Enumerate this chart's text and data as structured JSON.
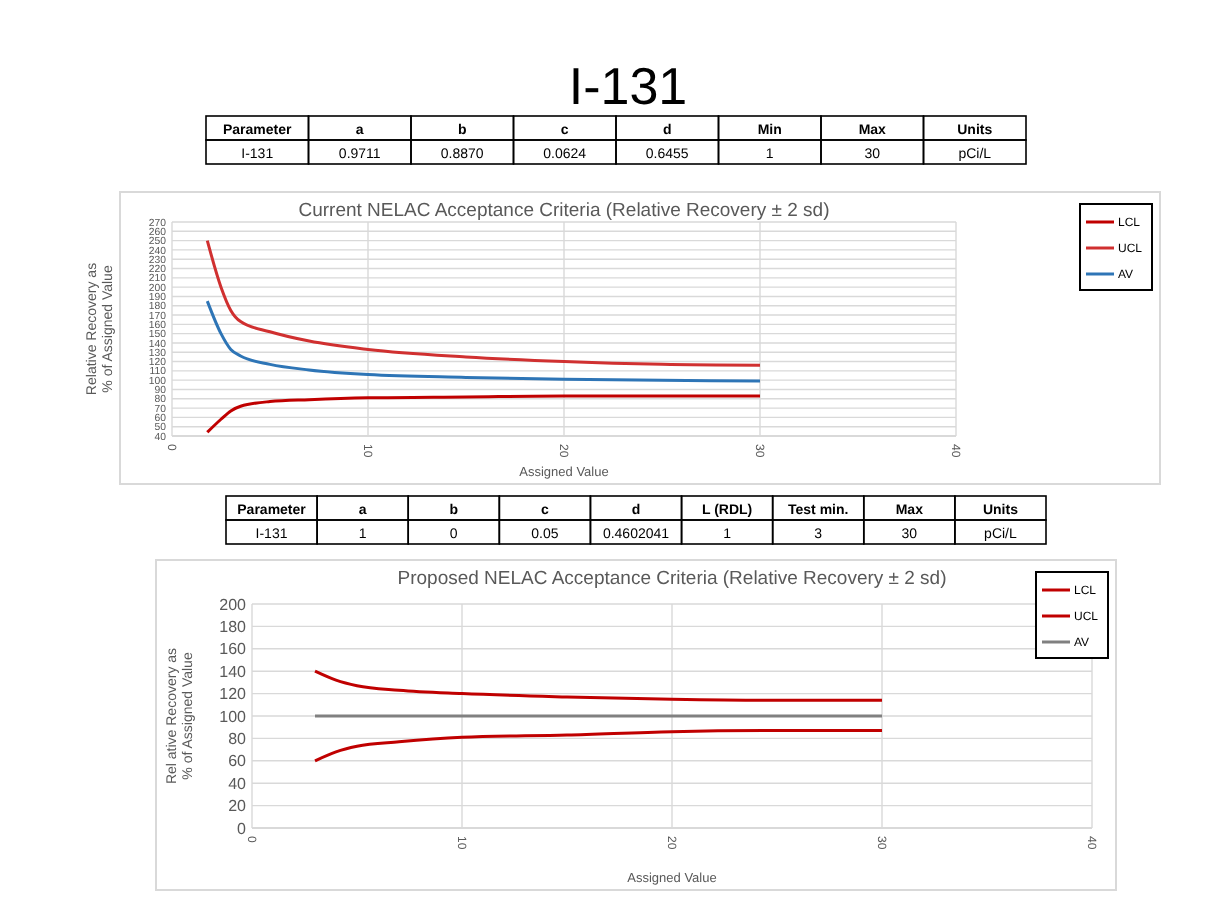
{
  "chart_data": [
    {
      "type": "other",
      "title": "I-131",
      "categories": [
        "Parameter",
        "a",
        "b",
        "c",
        "d",
        "Min",
        "Max",
        "Units"
      ],
      "value_labels": [
        "I-131",
        "0.9711",
        "0.8870",
        "0.0624",
        "0.6455",
        "1",
        "30",
        "pCi/L"
      ]
    },
    {
      "type": "line",
      "title": "Current NELAC Acceptance Criteria (Relative  Recovery  ± 2 sd)",
      "xlabel": "Assigned Value",
      "ylabel": "Relative Recovery as\n% of Assigned Value",
      "xlim": [
        0,
        40
      ],
      "xticks": [
        0,
        10,
        20,
        30,
        40
      ],
      "ylim": [
        40,
        270
      ],
      "yticks": [
        40,
        50,
        60,
        70,
        80,
        90,
        100,
        110,
        120,
        130,
        140,
        150,
        160,
        170,
        180,
        190,
        200,
        210,
        220,
        230,
        240,
        250,
        260,
        270
      ],
      "grid": true,
      "legend": "right",
      "x": [
        1.8,
        2.5,
        3,
        3.5,
        5,
        7,
        10,
        15,
        20,
        25,
        30
      ],
      "series": [
        {
          "name": "LCL",
          "color": "#c00000",
          "values": [
            44,
            58,
            67,
            72,
            77,
            79,
            81,
            82,
            83,
            83,
            83
          ]
        },
        {
          "name": "UCL",
          "color": "#d03030",
          "values": [
            250,
            200,
            175,
            163,
            152,
            142,
            133,
            125,
            120,
            117,
            116
          ]
        },
        {
          "name": "AV",
          "color": "#2e75b6",
          "values": [
            185,
            150,
            133,
            126,
            117,
            111,
            106,
            103,
            101,
            100,
            99
          ]
        }
      ]
    },
    {
      "type": "other",
      "categories": [
        "Parameter",
        "a",
        "b",
        "c",
        "d",
        "L (RDL)",
        "Test min.",
        "Max",
        "Units"
      ],
      "value_labels": [
        "I-131",
        "1",
        "0",
        "0.05",
        "0.4602041",
        "1",
        "3",
        "30",
        "pCi/L"
      ]
    },
    {
      "type": "line",
      "title": "Proposed NELAC Acceptance Criteria (Relative  Recovery  ± 2 sd)",
      "xlabel": "Assigned Value",
      "ylabel": "Rel ative Recovery as\n% of Assigned Value",
      "xlim": [
        0,
        40
      ],
      "xticks": [
        0,
        10,
        20,
        30,
        40
      ],
      "ylim": [
        0,
        200
      ],
      "yticks": [
        0,
        20,
        40,
        60,
        80,
        100,
        120,
        140,
        160,
        180,
        200
      ],
      "grid": true,
      "legend": "right",
      "x": [
        3,
        4,
        5,
        7,
        10,
        15,
        20,
        25,
        30
      ],
      "series": [
        {
          "name": "LCL",
          "color": "#c00000",
          "values": [
            60,
            68,
            73,
            77,
            81,
            83,
            86,
            87,
            87
          ]
        },
        {
          "name": "UCL",
          "color": "#c00000",
          "values": [
            140,
            132,
            127,
            123,
            120,
            117,
            115,
            114,
            114
          ]
        },
        {
          "name": "AV",
          "color": "#808080",
          "values": [
            100,
            100,
            100,
            100,
            100,
            100,
            100,
            100,
            100
          ]
        }
      ]
    }
  ]
}
